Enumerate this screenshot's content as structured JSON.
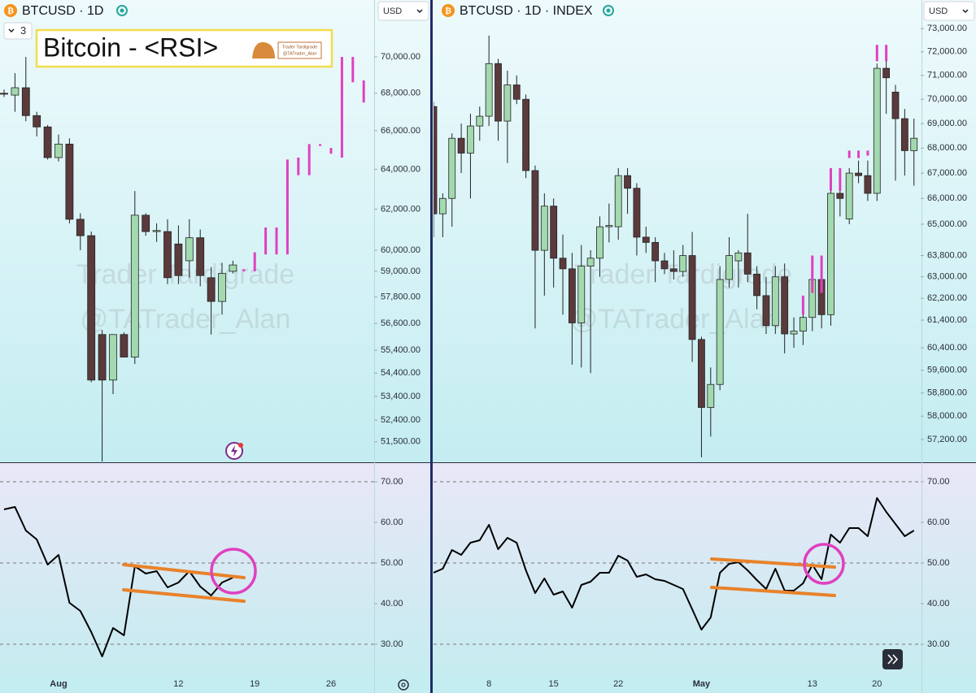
{
  "header": {
    "left_symbol": "BTCUSD · 1D",
    "right_symbol": "BTCUSD · 1D · INDEX",
    "currency": "USD",
    "layout_count": "3",
    "title": "Bitcoin - <RSI>",
    "badge": [
      "Trader Tardigrade",
      "@TATrader_Alan"
    ],
    "watermark": [
      "Trader Tardigrade",
      "@TATrader_Alan"
    ]
  },
  "chart_data": [
    {
      "type": "candlestick",
      "log_scale": true,
      "ylim": [
        50700,
        73250
      ],
      "yticks": [
        {
          "value": 70000,
          "label": "70,000.00"
        },
        {
          "value": 68000,
          "label": "68,000.00"
        },
        {
          "value": 66000,
          "label": "66,000.00"
        },
        {
          "value": 64000,
          "label": "64,000.00"
        },
        {
          "value": 62000,
          "label": "62,000.00"
        },
        {
          "value": 60000,
          "label": "60,000.00"
        },
        {
          "value": 59000,
          "label": "59,000.00"
        },
        {
          "value": 57800,
          "label": "57,800.00"
        },
        {
          "value": 56600,
          "label": "56,600.00"
        },
        {
          "value": 55400,
          "label": "55,400.00"
        },
        {
          "value": 54400,
          "label": "54,400.00"
        },
        {
          "value": 53400,
          "label": "53,400.00"
        },
        {
          "value": 52400,
          "label": "52,400.00"
        },
        {
          "value": 51500,
          "label": "51,500.00"
        }
      ],
      "categories": [
        null,
        null,
        null,
        null,
        null,
        "Aug",
        null,
        null,
        null,
        null,
        null,
        null,
        null,
        null,
        null,
        null,
        "12",
        null,
        null,
        null,
        null,
        null,
        null,
        "19",
        null,
        null,
        null,
        null,
        null,
        null,
        "26",
        null,
        null,
        null
      ],
      "open": [
        68000,
        67900,
        68300,
        66800,
        66200,
        64600,
        65300,
        61500,
        60700,
        56100,
        54100,
        56100,
        55100,
        61700,
        60900,
        60900,
        60300,
        59500,
        60600,
        58700,
        57600,
        59000,
        null,
        null,
        null,
        null,
        null,
        null,
        null,
        null,
        null,
        null,
        null,
        null
      ],
      "high": [
        68200,
        69100,
        70000,
        67000,
        66300,
        65800,
        65600,
        61800,
        60900,
        56300,
        56100,
        56200,
        62900,
        61800,
        61300,
        61500,
        61200,
        61500,
        61000,
        59200,
        59400,
        59500,
        null,
        null,
        null,
        null,
        null,
        null,
        null,
        null,
        null,
        null,
        null,
        null
      ],
      "low": [
        67800,
        67000,
        66500,
        65700,
        64500,
        64400,
        61300,
        60000,
        54000,
        49200,
        53500,
        55100,
        54800,
        60700,
        60400,
        58400,
        58400,
        58700,
        58300,
        56100,
        57000,
        58900,
        null,
        null,
        null,
        null,
        null,
        null,
        null,
        null,
        null,
        null,
        null,
        null
      ],
      "close": [
        67950,
        68300,
        66800,
        66200,
        64600,
        65300,
        61500,
        60700,
        54100,
        54100,
        56100,
        55100,
        61700,
        60900,
        60950,
        58700,
        58800,
        60600,
        58800,
        57600,
        58900,
        59300,
        null,
        null,
        null,
        null,
        null,
        null,
        null,
        null,
        null,
        null,
        null,
        null
      ],
      "up_color": "#a3d9ae",
      "down_color": "#5b3a3c",
      "projection": {
        "color": "#e040c0",
        "low": [
          null,
          null,
          null,
          null,
          null,
          null,
          null,
          null,
          null,
          null,
          null,
          null,
          null,
          null,
          null,
          null,
          null,
          null,
          null,
          null,
          null,
          null,
          59000,
          59000,
          59800,
          59800,
          59800,
          63700,
          63700,
          65200,
          64800,
          64600,
          68600,
          67500
        ],
        "high": [
          null,
          null,
          null,
          null,
          null,
          null,
          null,
          null,
          null,
          null,
          null,
          null,
          null,
          null,
          null,
          null,
          null,
          null,
          null,
          null,
          null,
          null,
          59100,
          59900,
          61100,
          61100,
          64500,
          64600,
          65300,
          65300,
          65100,
          70000,
          70000,
          68700
        ]
      }
    },
    {
      "type": "line",
      "ylim": [
        22.6,
        74.6
      ],
      "yticks": [
        {
          "value": 30,
          "label": "30.00"
        },
        {
          "value": 40,
          "label": "40.00"
        },
        {
          "value": 50,
          "label": "50.00"
        },
        {
          "value": 60,
          "label": "60.00"
        },
        {
          "value": 70,
          "label": "70.00"
        }
      ],
      "dashed_levels": [
        30,
        50,
        70
      ],
      "color": "#000000",
      "values": [
        63.2,
        63.8,
        58.0,
        55.8,
        49.6,
        52.0,
        40.2,
        38.2,
        33.0,
        27.0,
        34.0,
        32.2,
        49.2,
        47.4,
        48.0,
        44.0,
        45.2,
        48.0,
        44.2,
        42.0,
        45.2,
        46.4
      ]
    },
    {
      "type": "candlestick",
      "log_scale": true,
      "ylim": [
        56460,
        74250
      ],
      "yticks": [
        {
          "value": 73000,
          "label": "73,000.00"
        },
        {
          "value": 72000,
          "label": "72,000.00"
        },
        {
          "value": 71000,
          "label": "71,000.00"
        },
        {
          "value": 70000,
          "label": "70,000.00"
        },
        {
          "value": 69000,
          "label": "69,000.00"
        },
        {
          "value": 68000,
          "label": "68,000.00"
        },
        {
          "value": 67000,
          "label": "67,000.00"
        },
        {
          "value": 66000,
          "label": "66,000.00"
        },
        {
          "value": 65000,
          "label": "65,000.00"
        },
        {
          "value": 63800,
          "label": "63,800.00"
        },
        {
          "value": 63000,
          "label": "63,000.00"
        },
        {
          "value": 62200,
          "label": "62,200.00"
        },
        {
          "value": 61400,
          "label": "61,400.00"
        },
        {
          "value": 60400,
          "label": "60,400.00"
        },
        {
          "value": 59600,
          "label": "59,600.00"
        },
        {
          "value": 58800,
          "label": "58,800.00"
        },
        {
          "value": 58000,
          "label": "58,000.00"
        },
        {
          "value": 57200,
          "label": "57,200.00"
        }
      ],
      "categories": [
        null,
        null,
        null,
        null,
        null,
        null,
        "8",
        null,
        null,
        null,
        null,
        null,
        null,
        "15",
        null,
        null,
        null,
        null,
        null,
        null,
        "22",
        null,
        null,
        null,
        null,
        null,
        null,
        null,
        null,
        "May",
        null,
        null,
        null,
        null,
        null,
        null,
        null,
        null,
        null,
        null,
        null,
        "13",
        null,
        null,
        null,
        null,
        null,
        null,
        "20",
        null,
        null,
        null,
        null
      ],
      "open": [
        69700,
        65400,
        66000,
        68400,
        67800,
        68900,
        69300,
        71500,
        69100,
        70600,
        70000,
        67100,
        64000,
        65700,
        63700,
        63300,
        61300,
        63400,
        63700,
        64900,
        64900,
        66900,
        66400,
        64500,
        64300,
        63600,
        63300,
        63200,
        63800,
        60700,
        58300,
        59100,
        62900,
        63600,
        63900,
        63100,
        62300,
        61200,
        63000,
        60900,
        61000,
        61500,
        62900,
        61600,
        66200,
        65200,
        67000,
        66900,
        66200,
        71300,
        70300,
        69200,
        67900
      ],
      "high": [
        69900,
        66200,
        68600,
        69000,
        69400,
        69700,
        72700,
        71700,
        71200,
        71000,
        70200,
        67300,
        66200,
        66000,
        64600,
        63900,
        64200,
        64000,
        65300,
        65800,
        67200,
        67200,
        66600,
        64900,
        64500,
        63900,
        64000,
        64200,
        64700,
        60800,
        59700,
        63400,
        64500,
        64000,
        65400,
        63400,
        63000,
        63400,
        63500,
        61500,
        62200,
        63200,
        63200,
        66300,
        66900,
        67200,
        67500,
        67500,
        71500,
        71900,
        70600,
        69600,
        69200
      ],
      "low": [
        64500,
        64500,
        64900,
        67000,
        66000,
        68300,
        68900,
        68300,
        67400,
        69800,
        66800,
        61100,
        62300,
        62600,
        61600,
        59800,
        59700,
        59500,
        63000,
        64300,
        64400,
        65400,
        63800,
        63900,
        62800,
        63100,
        62900,
        63000,
        59900,
        56600,
        57300,
        58900,
        62600,
        62600,
        62800,
        61800,
        60900,
        60900,
        60200,
        60400,
        60500,
        61000,
        61100,
        61200,
        65300,
        65000,
        66600,
        65900,
        65900,
        69400,
        66700,
        66900,
        66500
      ],
      "close": [
        65400,
        66000,
        68400,
        67800,
        68900,
        69300,
        71500,
        69100,
        70600,
        70000,
        67100,
        64000,
        65700,
        63700,
        63300,
        61300,
        63400,
        63700,
        64900,
        64950,
        66900,
        66400,
        64500,
        64300,
        63600,
        63300,
        63200,
        63800,
        60700,
        58300,
        59100,
        62900,
        63800,
        63900,
        63100,
        62300,
        61200,
        63000,
        60900,
        61000,
        61500,
        62900,
        61600,
        66200,
        66000,
        67000,
        66900,
        66200,
        71300,
        70900,
        69200,
        67900,
        68400
      ],
      "up_color": "#a3d9ae",
      "down_color": "#5b3a3c",
      "projection": {
        "color": "#e040c0",
        "low": [
          null,
          null,
          null,
          null,
          null,
          null,
          null,
          null,
          null,
          null,
          null,
          null,
          null,
          null,
          null,
          null,
          null,
          null,
          null,
          null,
          null,
          null,
          null,
          null,
          null,
          null,
          null,
          null,
          null,
          null,
          null,
          null,
          null,
          null,
          null,
          null,
          null,
          null,
          null,
          null,
          61600,
          62400,
          62400,
          66300,
          66300,
          67600,
          67600,
          67700,
          71600,
          71600,
          null,
          null,
          null
        ],
        "high": [
          null,
          null,
          null,
          null,
          null,
          null,
          null,
          null,
          null,
          null,
          null,
          null,
          null,
          null,
          null,
          null,
          null,
          null,
          null,
          null,
          null,
          null,
          null,
          null,
          null,
          null,
          null,
          null,
          null,
          null,
          null,
          null,
          null,
          null,
          null,
          null,
          null,
          null,
          null,
          null,
          62300,
          63800,
          63800,
          67200,
          67200,
          67900,
          67900,
          67900,
          72300,
          72300,
          null,
          null,
          null
        ]
      }
    },
    {
      "type": "line",
      "ylim": [
        22.6,
        74.6
      ],
      "yticks": [
        {
          "value": 30,
          "label": "30.00"
        },
        {
          "value": 40,
          "label": "40.00"
        },
        {
          "value": 50,
          "label": "50.00"
        },
        {
          "value": 60,
          "label": "60.00"
        },
        {
          "value": 70,
          "label": "70.00"
        }
      ],
      "dashed_levels": [
        30,
        50,
        70
      ],
      "color": "#000000",
      "values": [
        47.6,
        48.6,
        53.2,
        52.0,
        55.0,
        55.6,
        59.4,
        53.4,
        56.2,
        55.0,
        48.2,
        42.6,
        46.2,
        42.2,
        43.0,
        39.0,
        44.6,
        45.4,
        47.6,
        47.6,
        51.8,
        50.6,
        46.6,
        47.2,
        46.0,
        45.6,
        44.6,
        43.6,
        38.6,
        33.6,
        36.6,
        47.6,
        49.8,
        50.2,
        48.2,
        45.8,
        43.6,
        48.6,
        43.2,
        43.2,
        45.0,
        49.6,
        46.0,
        57.0,
        55.0,
        58.6,
        58.6,
        56.6,
        66.0,
        62.6,
        59.6,
        56.6,
        58.0
      ]
    }
  ]
}
